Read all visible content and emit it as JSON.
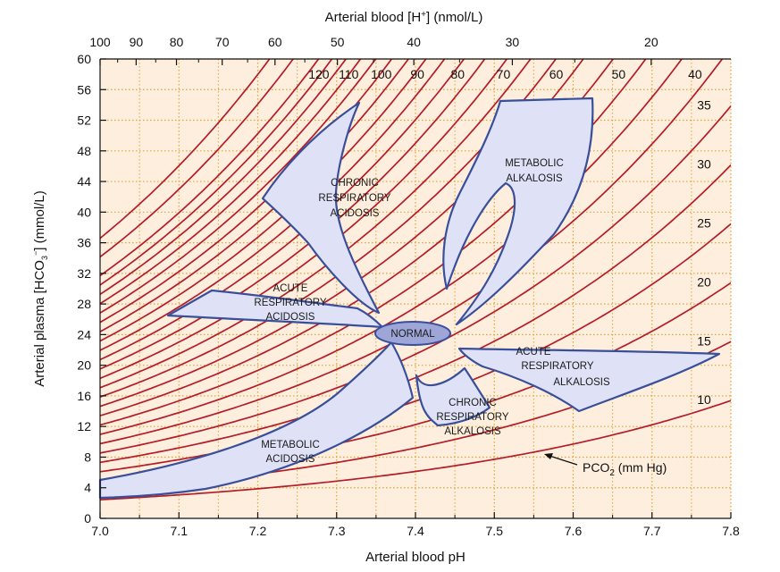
{
  "title_top": "Arterial blood [H",
  "title_top_sup": "+",
  "title_top_end": "] (nmol/L)",
  "x_label": "Arterial blood pH",
  "y_label": "Arterial plasma [HCO",
  "y_label_sub": "3",
  "y_label_sup": "−",
  "y_label_end": "] (mmol/L)",
  "x_ticks": [
    "7.0",
    "7.1",
    "7.2",
    "7.3",
    "7.4",
    "7.5",
    "7.6",
    "7.7",
    "7.8"
  ],
  "x_tick_values": [
    7.0,
    7.1,
    7.2,
    7.3,
    7.4,
    7.5,
    7.6,
    7.7,
    7.8
  ],
  "y_ticks": [
    "0",
    "4",
    "8",
    "12",
    "16",
    "20",
    "24",
    "28",
    "32",
    "36",
    "40",
    "44",
    "48",
    "52",
    "56",
    "60"
  ],
  "y_tick_values": [
    0,
    4,
    8,
    12,
    16,
    20,
    24,
    28,
    32,
    36,
    40,
    44,
    48,
    52,
    56,
    60
  ],
  "h_ticks": [
    "100",
    "90",
    "80",
    "70",
    "60",
    "50",
    "40",
    "30",
    "20"
  ],
  "h_tick_values": [
    100,
    90,
    80,
    70,
    60,
    50,
    40,
    30,
    20
  ],
  "pco2_labels": [
    "120",
    "110",
    "100",
    "90",
    "80",
    "70",
    "60",
    "50",
    "40",
    "35",
    "30",
    "25",
    "20",
    "15",
    "10"
  ],
  "pco2_values": [
    120,
    110,
    100,
    90,
    80,
    70,
    60,
    50,
    40,
    35,
    30,
    25,
    20,
    15,
    10
  ],
  "pco2_extra_values": [
    45,
    55,
    65,
    75,
    85,
    95,
    105,
    115,
    125,
    130,
    140,
    150
  ],
  "pco2_callout": "PCO",
  "pco2_callout_sub": "2",
  "pco2_callout_end": " (mm Hg)",
  "regions": {
    "chronic_resp_acidosis": [
      "CHRONIC",
      "RESPIRATORY",
      "ACIDOSIS"
    ],
    "acute_resp_acidosis": [
      "ACUTE",
      "RESPIRATORY",
      "ACIDOSIS"
    ],
    "metabolic_alkalosis": [
      "METABOLIC",
      "ALKALOSIS"
    ],
    "normal": "NORMAL",
    "acute_resp_alkalosis": [
      "ACUTE",
      "RESPIRATORY",
      "ALKALOSIS"
    ],
    "chronic_resp_alkalosis": [
      "CHRONIC",
      "RESPIRATORY",
      "ALKALOSIS"
    ],
    "metabolic_acidosis": [
      "METABOLIC",
      "ACIDOSIS"
    ]
  },
  "colors": {
    "background": "#fdeedd",
    "grid": "#e4a33a",
    "isopleth": "#b41c28",
    "region_fill": "#dfe2f6",
    "region_stroke": "#3a4f9a",
    "normal_fill": "#9ea6d8"
  }
}
